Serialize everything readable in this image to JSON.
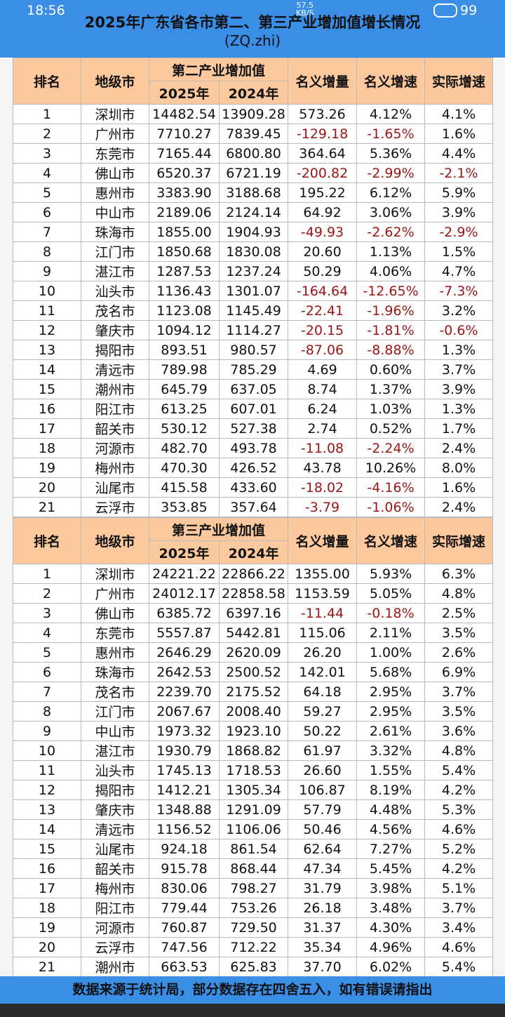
{
  "status_bar": {
    "time": "18:56",
    "network_speed": "57.5",
    "network_unit": "KB/S",
    "battery": "99"
  },
  "header": {
    "title": "2025年广东省各市第二、第三产业增加值增长情况",
    "subtitle": "(ZQ.zhi)"
  },
  "tables": [
    {
      "columns": {
        "rank": "排名",
        "city": "地级市",
        "group": "第二产业增加值",
        "year_a": "2025年",
        "year_b": "2024年",
        "nominal_increase": "名义增量",
        "nominal_growth": "名义增速",
        "real_growth": "实际增速"
      },
      "rows": [
        [
          "1",
          "深圳市",
          "14482.54",
          "13909.28",
          "573.26",
          "4.12%",
          "4.1%"
        ],
        [
          "2",
          "广州市",
          "7710.27",
          "7839.45",
          "-129.18",
          "-1.65%",
          "1.6%"
        ],
        [
          "3",
          "东莞市",
          "7165.44",
          "6800.80",
          "364.64",
          "5.36%",
          "4.4%"
        ],
        [
          "4",
          "佛山市",
          "6520.37",
          "6721.19",
          "-200.82",
          "-2.99%",
          "-2.1%"
        ],
        [
          "5",
          "惠州市",
          "3383.90",
          "3188.68",
          "195.22",
          "6.12%",
          "5.9%"
        ],
        [
          "6",
          "中山市",
          "2189.06",
          "2124.14",
          "64.92",
          "3.06%",
          "3.9%"
        ],
        [
          "7",
          "珠海市",
          "1855.00",
          "1904.93",
          "-49.93",
          "-2.62%",
          "-2.9%"
        ],
        [
          "8",
          "江门市",
          "1850.68",
          "1830.08",
          "20.60",
          "1.13%",
          "1.5%"
        ],
        [
          "9",
          "湛江市",
          "1287.53",
          "1237.24",
          "50.29",
          "4.06%",
          "4.7%"
        ],
        [
          "10",
          "汕头市",
          "1136.43",
          "1301.07",
          "-164.64",
          "-12.65%",
          "-7.3%"
        ],
        [
          "11",
          "茂名市",
          "1123.08",
          "1145.49",
          "-22.41",
          "-1.96%",
          "3.2%"
        ],
        [
          "12",
          "肇庆市",
          "1094.12",
          "1114.27",
          "-20.15",
          "-1.81%",
          "-0.6%"
        ],
        [
          "13",
          "揭阳市",
          "893.51",
          "980.57",
          "-87.06",
          "-8.88%",
          "1.3%"
        ],
        [
          "14",
          "清远市",
          "789.98",
          "785.29",
          "4.69",
          "0.60%",
          "3.7%"
        ],
        [
          "15",
          "潮州市",
          "645.79",
          "637.05",
          "8.74",
          "1.37%",
          "3.9%"
        ],
        [
          "16",
          "阳江市",
          "613.25",
          "607.01",
          "6.24",
          "1.03%",
          "1.3%"
        ],
        [
          "17",
          "韶关市",
          "530.12",
          "527.38",
          "2.74",
          "0.52%",
          "1.7%"
        ],
        [
          "18",
          "河源市",
          "482.70",
          "493.78",
          "-11.08",
          "-2.24%",
          "2.4%"
        ],
        [
          "19",
          "梅州市",
          "470.30",
          "426.52",
          "43.78",
          "10.26%",
          "8.0%"
        ],
        [
          "20",
          "汕尾市",
          "415.58",
          "433.60",
          "-18.02",
          "-4.16%",
          "1.6%"
        ],
        [
          "21",
          "云浮市",
          "353.85",
          "357.64",
          "-3.79",
          "-1.06%",
          "2.4%"
        ]
      ]
    },
    {
      "columns": {
        "rank": "排名",
        "city": "地级市",
        "group": "第三产业增加值",
        "year_a": "2025年",
        "year_b": "2024年",
        "nominal_increase": "名义增量",
        "nominal_growth": "名义增速",
        "real_growth": "实际增速"
      },
      "rows": [
        [
          "1",
          "深圳市",
          "24221.22",
          "22866.22",
          "1355.00",
          "5.93%",
          "6.3%"
        ],
        [
          "2",
          "广州市",
          "24012.17",
          "22858.58",
          "1153.59",
          "5.05%",
          "4.8%"
        ],
        [
          "3",
          "佛山市",
          "6385.72",
          "6397.16",
          "-11.44",
          "-0.18%",
          "2.5%"
        ],
        [
          "4",
          "东莞市",
          "5557.87",
          "5442.81",
          "115.06",
          "2.11%",
          "3.5%"
        ],
        [
          "5",
          "惠州市",
          "2646.29",
          "2620.09",
          "26.20",
          "1.00%",
          "2.6%"
        ],
        [
          "6",
          "珠海市",
          "2642.53",
          "2500.52",
          "142.01",
          "5.68%",
          "6.9%"
        ],
        [
          "7",
          "茂名市",
          "2239.70",
          "2175.52",
          "64.18",
          "2.95%",
          "3.7%"
        ],
        [
          "8",
          "江门市",
          "2067.67",
          "2008.40",
          "59.27",
          "2.95%",
          "3.5%"
        ],
        [
          "9",
          "中山市",
          "1973.32",
          "1923.10",
          "50.22",
          "2.61%",
          "3.6%"
        ],
        [
          "10",
          "湛江市",
          "1930.79",
          "1868.82",
          "61.97",
          "3.32%",
          "4.8%"
        ],
        [
          "11",
          "汕头市",
          "1745.13",
          "1718.53",
          "26.60",
          "1.55%",
          "5.4%"
        ],
        [
          "12",
          "揭阳市",
          "1412.21",
          "1305.34",
          "106.87",
          "8.19%",
          "4.2%"
        ],
        [
          "13",
          "肇庆市",
          "1348.88",
          "1291.09",
          "57.79",
          "4.48%",
          "5.3%"
        ],
        [
          "14",
          "清远市",
          "1156.52",
          "1106.06",
          "50.46",
          "4.56%",
          "4.6%"
        ],
        [
          "15",
          "汕尾市",
          "924.18",
          "861.54",
          "62.64",
          "7.27%",
          "5.2%"
        ],
        [
          "16",
          "韶关市",
          "915.78",
          "868.44",
          "47.34",
          "5.45%",
          "4.2%"
        ],
        [
          "17",
          "梅州市",
          "830.06",
          "798.27",
          "31.79",
          "3.98%",
          "5.1%"
        ],
        [
          "18",
          "阳江市",
          "779.44",
          "753.26",
          "26.18",
          "3.48%",
          "3.7%"
        ],
        [
          "19",
          "河源市",
          "760.87",
          "729.50",
          "31.37",
          "4.30%",
          "3.4%"
        ],
        [
          "20",
          "云浮市",
          "747.56",
          "712.22",
          "35.34",
          "4.96%",
          "4.6%"
        ],
        [
          "21",
          "潮州市",
          "663.53",
          "625.83",
          "37.70",
          "6.02%",
          "5.4%"
        ]
      ]
    }
  ],
  "footer": "数据来源于统计局，部分数据存在四舍五入，如有错误请指出"
}
